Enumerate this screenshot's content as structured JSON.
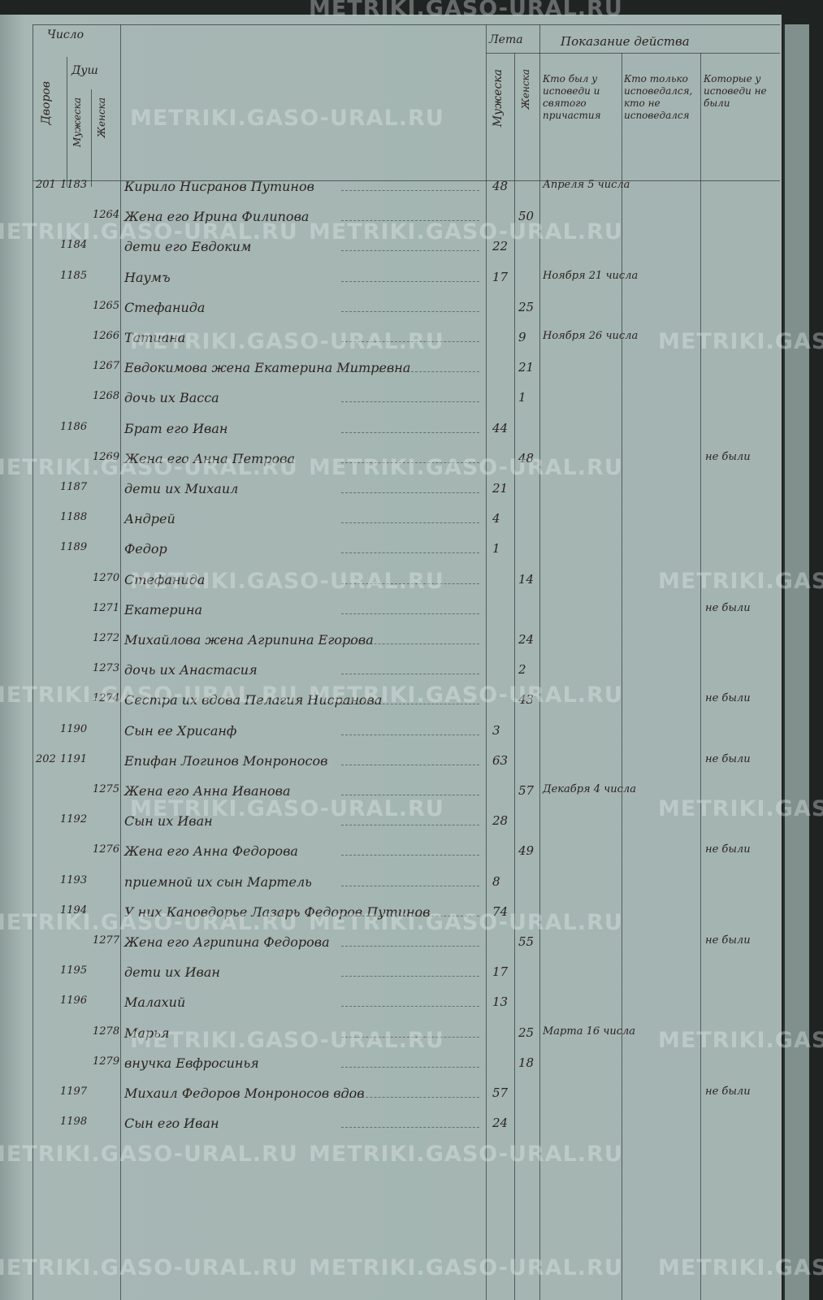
{
  "watermark": "METRIKI.GASO-URAL.RU",
  "header": {
    "count_label": "Число",
    "souls_label": "Душ",
    "households_label": "Дворов",
    "male_label": "Мужеска",
    "female_label": "Женска",
    "age_label": "Лета",
    "age_male_label": "Мужеска",
    "age_female_label": "Женска",
    "action_label": "Показание действа",
    "col_communion": "Кто был у исповеди и святого причастия",
    "col_confession": "Кто только исповедался, кто не исповедался",
    "col_absent": "Которые у исповеди не были"
  },
  "rows": [
    {
      "household": "201",
      "male": "1183",
      "female": "",
      "name": "Кирило Нисранов Путинов",
      "age_m": "48",
      "age_f": "",
      "communion": "Апреля 5 числа",
      "absent": ""
    },
    {
      "household": "",
      "male": "",
      "female": "1264",
      "name": "Жена его Ирина Филипова",
      "age_m": "",
      "age_f": "50",
      "communion": "",
      "absent": ""
    },
    {
      "household": "",
      "male": "1184",
      "female": "",
      "name": "дети его Евдоким",
      "age_m": "22",
      "age_f": "",
      "communion": "",
      "absent": ""
    },
    {
      "household": "",
      "male": "1185",
      "female": "",
      "name": "Наумъ",
      "age_m": "17",
      "age_f": "",
      "communion": "Ноября 21 числа",
      "absent": ""
    },
    {
      "household": "",
      "male": "",
      "female": "1265",
      "name": "Стефанида",
      "age_m": "",
      "age_f": "25",
      "communion": "",
      "absent": ""
    },
    {
      "household": "",
      "male": "",
      "female": "1266",
      "name": "Татиана",
      "age_m": "",
      "age_f": "9",
      "communion": "Ноября 26 числа",
      "absent": ""
    },
    {
      "household": "",
      "male": "",
      "female": "1267",
      "name": "Евдокимова жена Екатерина Митревна",
      "age_m": "",
      "age_f": "21",
      "communion": "",
      "absent": ""
    },
    {
      "household": "",
      "male": "",
      "female": "1268",
      "name": "дочь их Васса",
      "age_m": "",
      "age_f": "1",
      "communion": "",
      "absent": ""
    },
    {
      "household": "",
      "male": "1186",
      "female": "",
      "name": "Брат его Иван",
      "age_m": "44",
      "age_f": "",
      "communion": "",
      "absent": ""
    },
    {
      "household": "",
      "male": "",
      "female": "1269",
      "name": "Жена его Анна Петрова",
      "age_m": "",
      "age_f": "48",
      "communion": "",
      "absent": "не были"
    },
    {
      "household": "",
      "male": "1187",
      "female": "",
      "name": "дети их Михаил",
      "age_m": "21",
      "age_f": "",
      "communion": "",
      "absent": ""
    },
    {
      "household": "",
      "male": "1188",
      "female": "",
      "name": "Андрей",
      "age_m": "4",
      "age_f": "",
      "communion": "",
      "absent": ""
    },
    {
      "household": "",
      "male": "1189",
      "female": "",
      "name": "Федор",
      "age_m": "1",
      "age_f": "",
      "communion": "",
      "absent": ""
    },
    {
      "household": "",
      "male": "",
      "female": "1270",
      "name": "Стефанида",
      "age_m": "",
      "age_f": "14",
      "communion": "",
      "absent": ""
    },
    {
      "household": "",
      "male": "",
      "female": "1271",
      "name": "Екатерина",
      "age_m": "",
      "age_f": "",
      "communion": "",
      "absent": "не были"
    },
    {
      "household": "",
      "male": "",
      "female": "1272",
      "name": "Михайлова жена Агрипина Егорова",
      "age_m": "",
      "age_f": "24",
      "communion": "",
      "absent": ""
    },
    {
      "household": "",
      "male": "",
      "female": "1273",
      "name": "дочь их Анастасия",
      "age_m": "",
      "age_f": "2",
      "communion": "",
      "absent": ""
    },
    {
      "household": "",
      "male": "",
      "female": "1274",
      "name": "Сестра их вдова Пелагия Нисранова",
      "age_m": "",
      "age_f": "43",
      "communion": "",
      "absent": "не были"
    },
    {
      "household": "",
      "male": "1190",
      "female": "",
      "name": "Сын ее Хрисанф",
      "age_m": "3",
      "age_f": "",
      "communion": "",
      "absent": ""
    },
    {
      "household": "202",
      "male": "1191",
      "female": "",
      "name": "Епифан Логинов Монроносов",
      "age_m": "63",
      "age_f": "",
      "communion": "",
      "absent": "не были"
    },
    {
      "household": "",
      "male": "",
      "female": "1275",
      "name": "Жена его Анна Иванова",
      "age_m": "",
      "age_f": "57",
      "communion": "Декабря 4 числа",
      "absent": ""
    },
    {
      "household": "",
      "male": "1192",
      "female": "",
      "name": "Сын их Иван",
      "age_m": "28",
      "age_f": "",
      "communion": "",
      "absent": ""
    },
    {
      "household": "",
      "male": "",
      "female": "1276",
      "name": "Жена его Анна Федорова",
      "age_m": "",
      "age_f": "49",
      "communion": "",
      "absent": "не были"
    },
    {
      "household": "",
      "male": "1193",
      "female": "",
      "name": "приемной их сын Мартель",
      "age_m": "8",
      "age_f": "",
      "communion": "",
      "absent": ""
    },
    {
      "household": "",
      "male": "1194",
      "female": "",
      "name": "У них Кановдорье Лазарь Федоров Путинов",
      "age_m": "74",
      "age_f": "",
      "communion": "",
      "absent": ""
    },
    {
      "household": "",
      "male": "",
      "female": "1277",
      "name": "Жена его Агрипина Федорова",
      "age_m": "",
      "age_f": "55",
      "communion": "",
      "absent": "не были"
    },
    {
      "household": "",
      "male": "1195",
      "female": "",
      "name": "дети их Иван",
      "age_m": "17",
      "age_f": "",
      "communion": "",
      "absent": ""
    },
    {
      "household": "",
      "male": "1196",
      "female": "",
      "name": "Малахий",
      "age_m": "13",
      "age_f": "",
      "communion": "",
      "absent": ""
    },
    {
      "household": "",
      "male": "",
      "female": "1278",
      "name": "Марья",
      "age_m": "",
      "age_f": "25",
      "communion": "Марта 16 числа",
      "absent": ""
    },
    {
      "household": "",
      "male": "",
      "female": "1279",
      "name": "внучка Евфросинья",
      "age_m": "",
      "age_f": "18",
      "communion": "",
      "absent": ""
    },
    {
      "household": "",
      "male": "1197",
      "female": "",
      "name": "Михаил Федоров Монроносов вдов",
      "age_m": "57",
      "age_f": "",
      "communion": "",
      "absent": "не были"
    },
    {
      "household": "",
      "male": "1198",
      "female": "",
      "name": "Сын его Иван",
      "age_m": "24",
      "age_f": "",
      "communion": "",
      "absent": ""
    }
  ]
}
